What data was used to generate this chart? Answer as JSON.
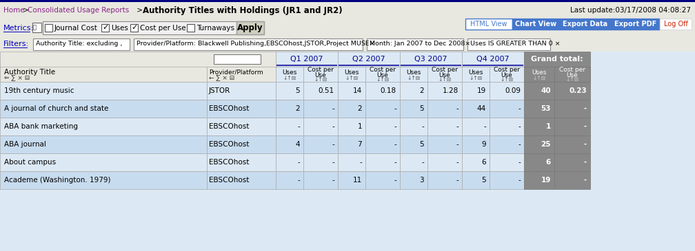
{
  "last_update": "Last update:03/17/2008 04:08:27",
  "nav_buttons": [
    "HTML View",
    "Chart View",
    "Export Data",
    "Export PDF",
    "Log Off"
  ],
  "nav_btn_colors": [
    "#ffffff",
    "#4477cc",
    "#4477cc",
    "#4477cc",
    "#ffffff"
  ],
  "nav_btn_text_colors": [
    "#4477cc",
    "#ffffff",
    "#ffffff",
    "#ffffff",
    "#cc2200"
  ],
  "nav_btn_border_colors": [
    "#4477cc",
    "#4477cc",
    "#4477cc",
    "#4477cc",
    "#dddddd"
  ],
  "metrics_checkboxes": [
    "Journal Cost",
    "Uses",
    "Cost per Use",
    "Turnaways"
  ],
  "metrics_checked": [
    false,
    true,
    true,
    false
  ],
  "filters": [
    "Authority Title: excluding ,",
    "Provider/Platform: Blackwell Publishing,EBSCOhost,JSTOR,Project MUSE×",
    "Month: Jan 2007 to Dec 2008×",
    "Uses IS GREATER THAN 0 ×"
  ],
  "col_groups": [
    "Q1 2007",
    "Q2 2007",
    "Q3 2007",
    "Q4 2007",
    "Grand total:"
  ],
  "rows": [
    [
      "19th century music",
      "JSTOR",
      "5",
      "0.51",
      "14",
      "0.18",
      "2",
      "1.28",
      "19",
      "0.09",
      "40",
      "0.23"
    ],
    [
      "A journal of church and state",
      "EBSCOhost",
      "2",
      "-",
      "2",
      "-",
      "5",
      "-",
      "44",
      "-",
      "53",
      "-"
    ],
    [
      "ABA bank marketing",
      "EBSCOhost",
      "-",
      "-",
      "1",
      "-",
      "-",
      "-",
      "-",
      "-",
      "1",
      "-"
    ],
    [
      "ABA journal",
      "EBSCOhost",
      "4",
      "-",
      "7",
      "-",
      "5",
      "-",
      "9",
      "-",
      "25",
      "-"
    ],
    [
      "About campus",
      "EBSCOhost",
      "-",
      "-",
      "-",
      "-",
      "-",
      "-",
      "6",
      "-",
      "6",
      "-"
    ],
    [
      "Academe (Washington. 1979)",
      "EBSCOhost",
      "-",
      "-",
      "11",
      "-",
      "3",
      "-",
      "5",
      "-",
      "19",
      "-"
    ]
  ],
  "bg_top": "#e8e8e0",
  "bg_blue_header": "#b8d0e8",
  "bg_grand": "#888888",
  "bg_row_even": "#dce9f5",
  "bg_row_odd": "#c8dcef",
  "bg_filter": "#e8e8e0",
  "color_dark": "#000000",
  "color_purple_link": "#882288",
  "color_blue_link": "#0000bb",
  "color_navy": "#000088",
  "title_bar_border": "#000080"
}
